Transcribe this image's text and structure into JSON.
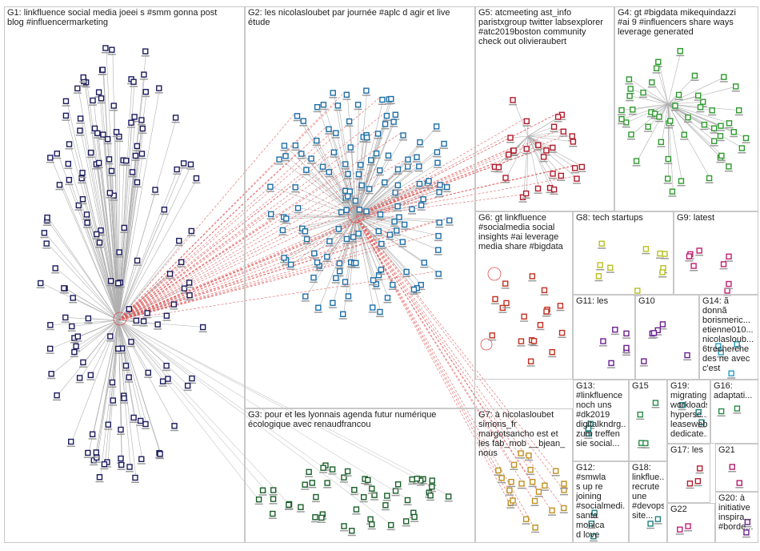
{
  "title": "",
  "groups": [
    {
      "id": "G1",
      "lines": [
        "G1: linkfluence social media joeei s #smm gonna post",
        "blog #influencermarketing"
      ],
      "color": "#1c1c5e"
    },
    {
      "id": "G2",
      "lines": [
        "G2: les nicolasloubet par journée #aplc d agir et live",
        "étude"
      ],
      "color": "#1e6fa8"
    },
    {
      "id": "G3",
      "lines": [
        "G3: pour et les lyonnais agenda futur numérique",
        "écologique avec renaudfrancou"
      ],
      "color": "#1a5e2a"
    },
    {
      "id": "G4",
      "lines": [
        "G4: gt #bigdata mikequindazzi",
        "#ai 9 #influencers share ways",
        "leverage generated"
      ],
      "color": "#2e9a2e"
    },
    {
      "id": "G5",
      "lines": [
        "G5: atcmeeting ast_info",
        "paristxgroup twitter labsexplorer",
        "#atc2019boston community",
        "check out olivieraubert"
      ],
      "color": "#b01c2c"
    },
    {
      "id": "G6",
      "lines": [
        "G6: gt linkfluence",
        "#socialmedia social",
        "insights #ai leverage",
        "media share #bigdata"
      ],
      "color": "#c03020"
    },
    {
      "id": "G7",
      "lines": [
        "G7: à nicolasloubet",
        "simons_fr",
        "margotsancho est et",
        "les fab_mob __bjean_",
        "nous"
      ],
      "color": "#c09020"
    },
    {
      "id": "G8",
      "lines": [
        "G8: tech startups"
      ],
      "color": "#b8c020"
    },
    {
      "id": "G9",
      "lines": [
        "G9: latest"
      ],
      "color": "#c02070"
    },
    {
      "id": "G10",
      "lines": [
        "G10"
      ],
      "color": "#6a2090"
    },
    {
      "id": "G11",
      "lines": [
        "G11: les"
      ],
      "color": "#6a2090"
    },
    {
      "id": "G12",
      "lines": [
        "G12: #smwla",
        "s up re",
        "joining",
        "#socialmedi...",
        "santa monica",
        "d love"
      ],
      "color": "#208080"
    },
    {
      "id": "G13",
      "lines": [
        "G13:",
        "#linkfluence",
        "noch uns",
        "#dk2019",
        "digitalkndrg...",
        "zum treffen",
        "sie social..."
      ],
      "color": "#208080"
    },
    {
      "id": "G14",
      "lines": [
        "G14: ã",
        "donnã",
        "borismeric...",
        "etienne010...",
        "nicolasloub...",
        "6trecherche",
        "des ne avec",
        "c'est"
      ],
      "color": "#20a0c0"
    },
    {
      "id": "G15",
      "lines": [
        "G15"
      ],
      "color": "#2a8a4a"
    },
    {
      "id": "G16",
      "lines": [
        "G16:",
        "adaptati..."
      ],
      "color": "#2a8a4a"
    },
    {
      "id": "G17",
      "lines": [
        "G17: les"
      ],
      "color": "#b02030"
    },
    {
      "id": "G18",
      "lines": [
        "G18:",
        "linkflue...",
        "recrute",
        "une",
        "#devops",
        "site..."
      ],
      "color": "#208080"
    },
    {
      "id": "G19",
      "lines": [
        "G19:",
        "migrating",
        "workloads",
        "hypersc...",
        "leaseweb",
        "dedicate..."
      ],
      "color": "#208080"
    },
    {
      "id": "G20",
      "lines": [
        "G20: à",
        "initiative",
        "inspira...",
        "#borde..."
      ],
      "color": "#6a2090"
    },
    {
      "id": "G21",
      "lines": [
        "G21"
      ],
      "color": "#b02070"
    },
    {
      "id": "G22",
      "lines": [
        "G22"
      ],
      "color": "#c02070"
    }
  ],
  "colors": {
    "box_border": "#c8c8c8",
    "edge_gray": "#b0b0b0",
    "edge_red": "#e06060",
    "background": "#ffffff"
  }
}
